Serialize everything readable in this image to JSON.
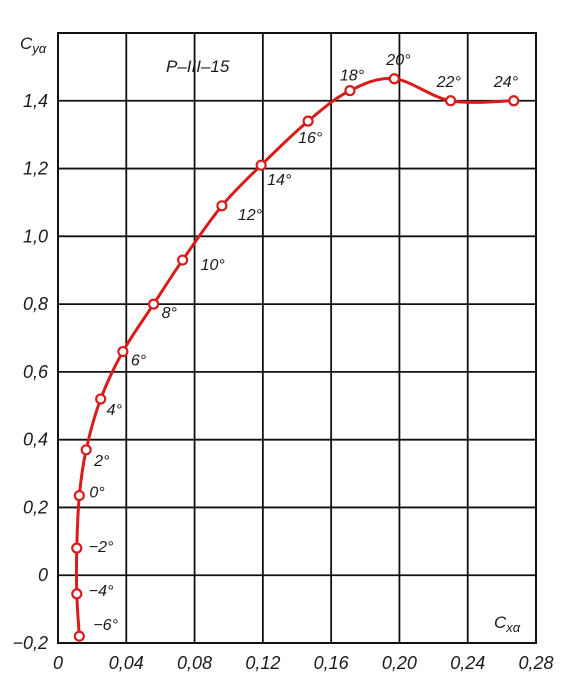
{
  "chart_data": {
    "type": "line",
    "title": "P–III–15",
    "xlabel": "C",
    "xlabel_sub": "xα",
    "ylabel": "C",
    "ylabel_sub": "yα",
    "xlim": [
      0,
      0.28
    ],
    "ylim": [
      -0.2,
      1.6
    ],
    "x_ticks": [
      0,
      0.04,
      0.08,
      0.12,
      0.16,
      0.2,
      0.24,
      0.28
    ],
    "x_tick_labels": [
      "0",
      "0,04",
      "0,08",
      "0,12",
      "0,16",
      "0,20",
      "0,24",
      "0,28"
    ],
    "y_ticks": [
      -0.2,
      0,
      0.2,
      0.4,
      0.6,
      0.8,
      1.0,
      1.2,
      1.4
    ],
    "y_tick_labels": [
      "−0,2",
      "0",
      "0,2",
      "0,4",
      "0,6",
      "0,8",
      "1,0",
      "1,2",
      "1,4"
    ],
    "grid": true,
    "line_color": "#d81c1c",
    "points": [
      {
        "x": 0.0125,
        "y": -0.18,
        "label": "−6°"
      },
      {
        "x": 0.011,
        "y": -0.055,
        "label": "−4°"
      },
      {
        "x": 0.011,
        "y": 0.08,
        "label": "−2°"
      },
      {
        "x": 0.0125,
        "y": 0.235,
        "label": "0°"
      },
      {
        "x": 0.0165,
        "y": 0.37,
        "label": "2°"
      },
      {
        "x": 0.025,
        "y": 0.52,
        "label": "4°"
      },
      {
        "x": 0.038,
        "y": 0.66,
        "label": "6°"
      },
      {
        "x": 0.056,
        "y": 0.8,
        "label": "8°"
      },
      {
        "x": 0.073,
        "y": 0.93,
        "label": "10°"
      },
      {
        "x": 0.096,
        "y": 1.09,
        "label": "12°"
      },
      {
        "x": 0.119,
        "y": 1.21,
        "label": "14°"
      },
      {
        "x": 0.1465,
        "y": 1.34,
        "label": "16°"
      },
      {
        "x": 0.171,
        "y": 1.43,
        "label": "18°"
      },
      {
        "x": 0.197,
        "y": 1.465,
        "label": "20°"
      },
      {
        "x": 0.23,
        "y": 1.4,
        "label": "22°"
      },
      {
        "x": 0.267,
        "y": 1.4,
        "label": "24°"
      }
    ]
  }
}
